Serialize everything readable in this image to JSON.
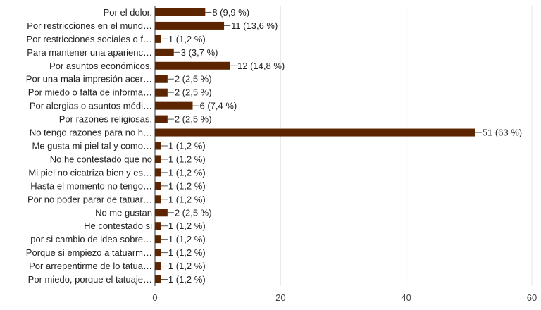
{
  "chart_data": {
    "type": "bar",
    "orientation": "horizontal",
    "categories": [
      "Por el dolor.",
      "Por restricciones en el mund…",
      "Por restricciones sociales o f…",
      "Para mantener una aparienc…",
      "Por asuntos económicos.",
      "Por una mala impresión acer…",
      "Por miedo o falta de informa…",
      "Por alergias o asuntos médi…",
      "Por razones religiosas.",
      "No tengo razones para no h…",
      "Me gusta mi piel tal y como…",
      "No he contestado que no",
      "Mi piel no cicatriza bien y es…",
      "Hasta el momento no tengo…",
      "Por no poder parar de tatuar…",
      "No me gustan",
      "He contestado si",
      "por si cambio de idea sobre…",
      "Porque si empiezo a tatuarm…",
      "Por arrepentirme de lo tatua…",
      "Por miedo, porque el tatuaje…"
    ],
    "values": [
      8,
      11,
      1,
      3,
      12,
      2,
      2,
      6,
      2,
      51,
      1,
      1,
      1,
      1,
      1,
      2,
      1,
      1,
      1,
      1,
      1
    ],
    "value_labels": [
      "8 (9,9 %)",
      "11 (13,6 %)",
      "1 (1,2 %)",
      "3 (3,7 %)",
      "12 (14,8 %)",
      "2 (2,5 %)",
      "2 (2,5 %)",
      "6 (7,4 %)",
      "2 (2,5 %)",
      "51 (63 %)",
      "1 (1,2 %)",
      "1 (1,2 %)",
      "1 (1,2 %)",
      "1 (1,2 %)",
      "1 (1,2 %)",
      "2 (2,5 %)",
      "1 (1,2 %)",
      "1 (1,2 %)",
      "1 (1,2 %)",
      "1 (1,2 %)",
      "1 (1,2 %)"
    ],
    "xlim": [
      0,
      60
    ],
    "x_ticks": [
      0,
      20,
      40,
      60
    ],
    "x_tick_labels": [
      "0",
      "20",
      "40",
      "60"
    ],
    "grid": "vertical",
    "bar_color": "#5d2400",
    "grid_color": "#e5e5e5",
    "axis_color": "#333333",
    "text_color": "#222222"
  }
}
